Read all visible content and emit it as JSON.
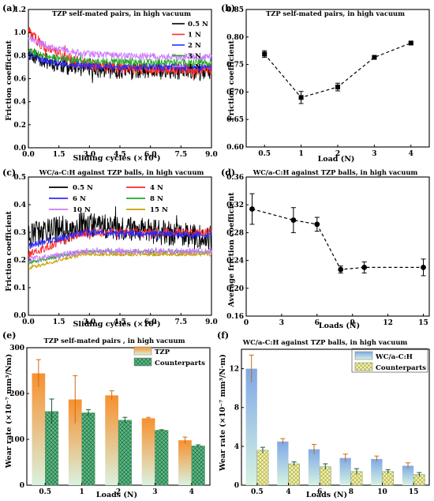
{
  "chart_data": [
    {
      "panel": "(a)",
      "type": "line",
      "title": "TZP self-mated pairs, in high vacuum",
      "xlabel": "Sliding cycles (×10⁴)",
      "ylabel": "Friction coefficient",
      "xlim": [
        0,
        9
      ],
      "ylim": [
        0,
        1.2
      ],
      "xticks": [
        "0.0",
        "1.5",
        "3.0",
        "4.5",
        "6.0",
        "7.5",
        "9.0"
      ],
      "yticks": [
        "0.0",
        "0.2",
        "0.4",
        "0.6",
        "0.8",
        "1.0",
        "1.2"
      ],
      "legend": "top-right",
      "series": [
        {
          "name": "0.5 N",
          "color": "#000000",
          "start": 0.83,
          "end": 0.66,
          "noise": 0.07
        },
        {
          "name": "1 N",
          "color": "#ff2a2a",
          "start": 1.02,
          "end": 0.68,
          "noise": 0.05
        },
        {
          "name": "2 N",
          "color": "#2b2bff",
          "start": 0.8,
          "end": 0.7,
          "noise": 0.03
        },
        {
          "name": "3 N",
          "color": "#22aa22",
          "start": 0.84,
          "end": 0.74,
          "noise": 0.03
        },
        {
          "name": "4 N",
          "color": "#cc77ff",
          "start": 0.96,
          "end": 0.79,
          "noise": 0.03
        }
      ]
    },
    {
      "panel": "(b)",
      "type": "line",
      "title": "TZP self-mated pairs, in high vacuum",
      "xlabel": "Load (N)",
      "ylabel": "Friction coefficient",
      "ylim": [
        0.6,
        0.85
      ],
      "categories": [
        "0.5",
        "1",
        "2",
        "3",
        "4"
      ],
      "yticks": [
        "0.60",
        "0.65",
        "0.70",
        "0.75",
        "0.80",
        "0.85"
      ],
      "values": [
        0.769,
        0.69,
        0.709,
        0.763,
        0.789
      ],
      "errors": [
        0.006,
        0.011,
        0.007,
        0.002,
        0.002
      ],
      "marker": "square"
    },
    {
      "panel": "(c)",
      "type": "line",
      "title": "WC/a-C:H against TZP balls, in high vacuum",
      "xlabel": "Sliding cycles (×10⁴)",
      "ylabel": "Friction coefficient",
      "xlim": [
        0,
        9
      ],
      "ylim": [
        0,
        0.5
      ],
      "xticks": [
        "0.0",
        "1.5",
        "3.0",
        "4.5",
        "6.0",
        "7.5",
        "9.0"
      ],
      "yticks": [
        "0.0",
        "0.1",
        "0.2",
        "0.3",
        "0.4",
        "0.5"
      ],
      "legend": "top",
      "series": [
        {
          "name": "0.5 N",
          "color": "#000000",
          "start": 0.29,
          "end": 0.28,
          "peak": 0.33,
          "noise": 0.045
        },
        {
          "name": "4 N",
          "color": "#ff2a2a",
          "start": 0.22,
          "end": 0.3,
          "peak": 0.3,
          "noise": 0.015
        },
        {
          "name": "6 N",
          "color": "#2b2bff",
          "start": 0.25,
          "end": 0.29,
          "peak": 0.3,
          "noise": 0.012
        },
        {
          "name": "8 N",
          "color": "#22aa22",
          "start": 0.19,
          "end": 0.23,
          "peak": 0.23,
          "noise": 0.006
        },
        {
          "name": "10 N",
          "color": "#cc77ff",
          "start": 0.2,
          "end": 0.23,
          "peak": 0.23,
          "noise": 0.012
        },
        {
          "name": "15 N",
          "color": "#c8a000",
          "start": 0.17,
          "end": 0.22,
          "peak": 0.22,
          "noise": 0.006
        }
      ]
    },
    {
      "panel": "(d)",
      "type": "line",
      "title": "WC/a-C:H against TZP balls, in high vacuum",
      "xlabel": "Loads (N)",
      "ylabel": "Average friction coefficient",
      "xlim": [
        0,
        15.5
      ],
      "ylim": [
        0.16,
        0.36
      ],
      "xticks": [
        "0",
        "3",
        "6",
        "9",
        "12",
        "15"
      ],
      "yticks": [
        "0.16",
        "0.20",
        "0.24",
        "0.28",
        "0.32",
        "0.36"
      ],
      "x": [
        0.5,
        4,
        6,
        8,
        10,
        15
      ],
      "values": [
        0.314,
        0.298,
        0.292,
        0.227,
        0.23,
        0.23
      ],
      "errors": [
        0.022,
        0.018,
        0.01,
        0.005,
        0.008,
        0.012
      ],
      "marker": "circle"
    },
    {
      "panel": "(e)",
      "type": "bar",
      "title": "TZP self-mated pairs , in high vacuum",
      "xlabel": "Loads (N)",
      "ylabel": "Wear rate (×10⁻⁷ mm³/Nm)",
      "ylim": [
        0,
        300
      ],
      "yticks": [
        "0",
        "100",
        "200",
        "300"
      ],
      "categories": [
        "0.5",
        "1",
        "2",
        "3",
        "4"
      ],
      "legend": "top-right",
      "series": [
        {
          "name": "TZP",
          "color": "#f59a3c",
          "values": [
            244,
            187,
            196,
            146,
            98
          ],
          "errors": [
            30,
            52,
            10,
            2,
            7
          ]
        },
        {
          "name": "Counterparts",
          "color": "#1f9c5a",
          "values": [
            161,
            158,
            142,
            120,
            86
          ],
          "errors": [
            27,
            7,
            6,
            1,
            2
          ]
        }
      ]
    },
    {
      "panel": "(f)",
      "type": "bar",
      "title": "WC/a-C:H against TZP balls, in high vacuum",
      "xlabel": "Loads (N)",
      "ylabel": "Wear rate (×10⁻⁷ mm³/N·m)",
      "ylim": [
        0,
        14
      ],
      "yticks": [
        "0",
        "4",
        "8",
        "12"
      ],
      "categories": [
        "0.5",
        "4",
        "6",
        "8",
        "10",
        "15"
      ],
      "legend": "top-right",
      "series": [
        {
          "name": "WC/a-C:H",
          "color": "#8ab4e8",
          "values": [
            12.0,
            4.5,
            3.7,
            2.8,
            2.7,
            2.0
          ],
          "errors": [
            1.4,
            0.3,
            0.5,
            0.4,
            0.3,
            0.3
          ]
        },
        {
          "name": "Counterparts",
          "color": "#f2f0a0",
          "values": [
            3.6,
            2.2,
            1.9,
            1.4,
            1.4,
            1.1
          ],
          "errors": [
            0.3,
            0.2,
            0.3,
            0.3,
            0.2,
            0.2
          ]
        }
      ]
    }
  ]
}
